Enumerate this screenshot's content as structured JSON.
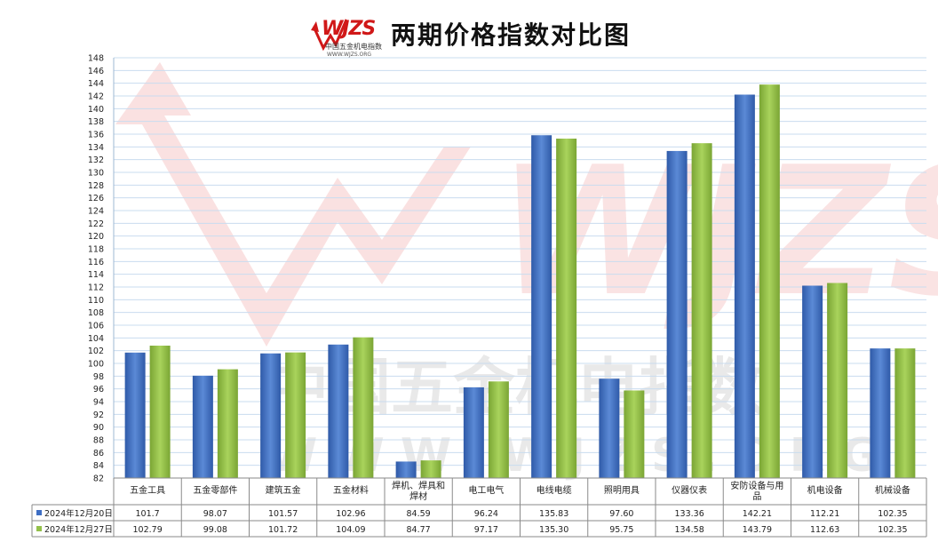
{
  "header": {
    "title": "两期价格指数对比图",
    "logo_text": "WJZS",
    "logo_subtitle": "中国五金机电指数",
    "logo_url": "WWW.WJZS.ORG"
  },
  "watermark": {
    "logo_text": "WJZS",
    "line1": "中国五金机电指数",
    "line2": "W W W . W J Z S . O R G"
  },
  "colors": {
    "series1": "#3e6ec4",
    "series2": "#93c04a",
    "grid": "#c9dcef",
    "watermark": "#f6c8c8"
  },
  "chart_data": {
    "type": "bar",
    "title": "两期价格指数对比图",
    "xlabel": "",
    "ylabel": "",
    "ylim": [
      82,
      148
    ],
    "ytick_step": 2,
    "grid": true,
    "legend_placement": "bottom-left data table",
    "categories": [
      "五金工具",
      "五金零部件",
      "建筑五金",
      "五金材料",
      "焊机、焊具和焊材",
      "电工电气",
      "电线电缆",
      "照明用具",
      "仪器仪表",
      "安防设备与用品",
      "机电设备",
      "机械设备"
    ],
    "category_lines": [
      [
        "五金工具"
      ],
      [
        "五金零部件"
      ],
      [
        "建筑五金"
      ],
      [
        "五金材料"
      ],
      [
        "焊机、焊具和",
        "焊材"
      ],
      [
        "电工电气"
      ],
      [
        "电线电缆"
      ],
      [
        "照明用具"
      ],
      [
        "仪器仪表"
      ],
      [
        "安防设备与用",
        "品"
      ],
      [
        "机电设备"
      ],
      [
        "机械设备"
      ]
    ],
    "series": [
      {
        "name": "2024年12月20日",
        "values": [
          101.7,
          98.07,
          101.57,
          102.96,
          84.59,
          96.24,
          135.83,
          97.6,
          133.36,
          142.21,
          112.21,
          102.35
        ],
        "labels": [
          "101.7",
          "98.07",
          "101.57",
          "102.96",
          "84.59",
          "96.24",
          "135.83",
          "97.60",
          "133.36",
          "142.21",
          "112.21",
          "102.35"
        ]
      },
      {
        "name": "2024年12月27日",
        "values": [
          102.79,
          99.08,
          101.72,
          104.09,
          84.77,
          97.17,
          135.3,
          95.75,
          134.58,
          143.79,
          112.63,
          102.35
        ],
        "labels": [
          "102.79",
          "99.08",
          "101.72",
          "104.09",
          "84.77",
          "97.17",
          "135.30",
          "95.75",
          "134.58",
          "143.79",
          "112.63",
          "102.35"
        ]
      }
    ]
  }
}
